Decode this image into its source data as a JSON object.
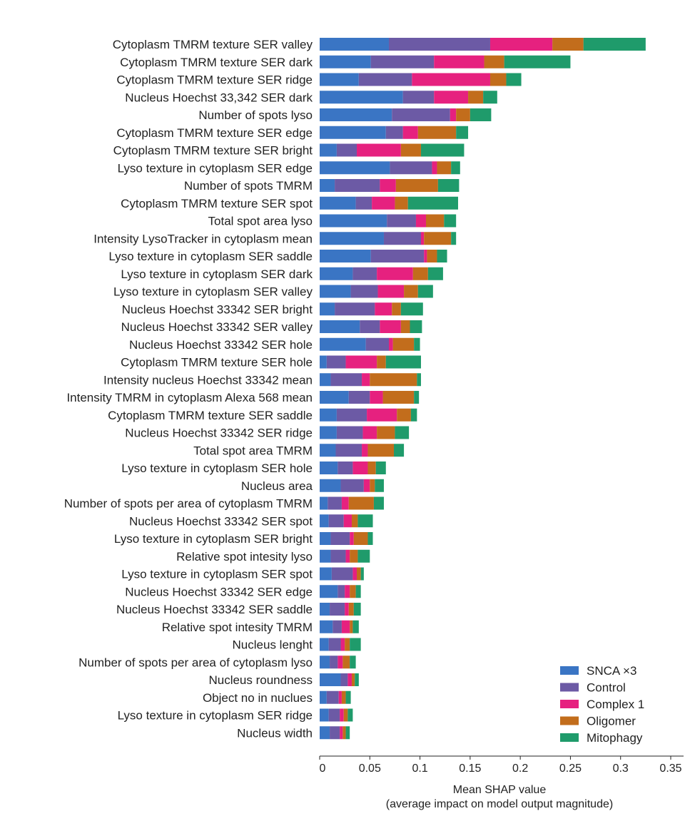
{
  "chart_data": {
    "type": "bar",
    "orientation": "horizontal",
    "stacked": true,
    "title": "",
    "xlabel": "Mean SHAP value",
    "xlabel_sub": "(average impact on model output magnitude)",
    "ylabel": "",
    "xlim": [
      0,
      0.35
    ],
    "xticks": [
      0,
      0.05,
      0.1,
      0.15,
      0.2,
      0.25,
      0.3,
      0.35
    ],
    "xtick_labels": [
      "0",
      "0.05",
      "0.1",
      "0.15",
      "0.2",
      "0.25",
      "0.3",
      "0.35"
    ],
    "grid": false,
    "legend_position": "bottom-right",
    "categories": [
      "Cytoplasm TMRM texture SER valley",
      "Cytoplasm TMRM texture SER dark",
      "Cytoplasm TMRM texture SER ridge",
      "Nucleus Hoechst 33,342 SER dark",
      "Number of spots lyso",
      "Cytoplasm TMRM texture SER edge",
      "Cytoplasm TMRM texture SER bright",
      "Lyso texture in cytoplasm SER edge",
      "Number of spots TMRM",
      "Cytoplasm TMRM texture SER spot",
      "Total spot area lyso",
      "Intensity LysoTracker in cytoplasm mean",
      "Lyso texture in cytoplasm SER saddle",
      "Lyso texture in cytoplasm SER dark",
      "Lyso texture in cytoplasm SER valley",
      "Nucleus Hoechst 33342 SER bright",
      "Nucleus Hoechst 33342 SER valley",
      "Nucleus Hoechst 33342 SER hole",
      "Cytoplasm TMRM texture SER hole",
      "Intensity nucleus Hoechst 33342 mean",
      "Intensity TMRM in cytoplasm Alexa 568 mean",
      "Cytoplasm TMRM texture SER saddle",
      "Nucleus Hoechst 33342 SER ridge",
      "Total spot area TMRM",
      "Lyso texture in cytoplasm SER hole",
      "Nucleus area",
      "Number of spots per area of cytoplasm TMRM",
      "Nucleus Hoechst 33342 SER spot",
      "Lyso texture in cytoplasm SER bright",
      "Relative spot intesity lyso",
      "Lyso texture in cytoplasm SER spot",
      "Nucleus Hoechst 33342 SER edge",
      "Nucleus Hoechst 33342 SER saddle",
      "Relative spot intesity TMRM",
      "Nucleus lenght",
      "Number of spots per area of cytoplasm lyso",
      "Nucleus roundness",
      "Object no in nuclues",
      "Lyso texture in cytoplasm SER ridge",
      "Nucleus width"
    ],
    "series": [
      {
        "name": "SNCA ×3",
        "color": "#3a75c4",
        "values": [
          0.069,
          0.051,
          0.039,
          0.083,
          0.072,
          0.066,
          0.017,
          0.07,
          0.015,
          0.036,
          0.067,
          0.064,
          0.051,
          0.033,
          0.031,
          0.015,
          0.04,
          0.046,
          0.007,
          0.011,
          0.029,
          0.017,
          0.017,
          0.016,
          0.018,
          0.021,
          0.008,
          0.009,
          0.011,
          0.011,
          0.012,
          0.018,
          0.01,
          0.013,
          0.009,
          0.01,
          0.021,
          0.007,
          0.009,
          0.01
        ]
      },
      {
        "name": "Control",
        "color": "#6c5aa5",
        "values": [
          0.101,
          0.063,
          0.053,
          0.031,
          0.058,
          0.017,
          0.02,
          0.042,
          0.045,
          0.016,
          0.029,
          0.037,
          0.053,
          0.024,
          0.027,
          0.04,
          0.02,
          0.023,
          0.019,
          0.031,
          0.021,
          0.03,
          0.026,
          0.026,
          0.015,
          0.023,
          0.014,
          0.015,
          0.019,
          0.015,
          0.021,
          0.007,
          0.015,
          0.009,
          0.012,
          0.008,
          0.007,
          0.012,
          0.011,
          0.01
        ]
      },
      {
        "name": "Complex 1",
        "color": "#e6217f",
        "values": [
          0.062,
          0.05,
          0.078,
          0.034,
          0.006,
          0.015,
          0.044,
          0.005,
          0.016,
          0.023,
          0.01,
          0.003,
          0.003,
          0.036,
          0.026,
          0.017,
          0.021,
          0.004,
          0.031,
          0.008,
          0.013,
          0.03,
          0.014,
          0.006,
          0.015,
          0.006,
          0.007,
          0.008,
          0.004,
          0.004,
          0.004,
          0.005,
          0.004,
          0.008,
          0.004,
          0.005,
          0.004,
          0.003,
          0.004,
          0.003
        ]
      },
      {
        "name": "Oligomer",
        "color": "#c26d1c",
        "values": [
          0.031,
          0.02,
          0.016,
          0.015,
          0.014,
          0.038,
          0.02,
          0.014,
          0.042,
          0.013,
          0.018,
          0.027,
          0.01,
          0.015,
          0.014,
          0.009,
          0.009,
          0.021,
          0.009,
          0.047,
          0.031,
          0.014,
          0.018,
          0.026,
          0.008,
          0.005,
          0.025,
          0.006,
          0.014,
          0.008,
          0.004,
          0.006,
          0.005,
          0.003,
          0.005,
          0.007,
          0.003,
          0.004,
          0.004,
          0.003
        ]
      },
      {
        "name": "Mitophagy",
        "color": "#1f9b6b",
        "values": [
          0.062,
          0.066,
          0.015,
          0.014,
          0.021,
          0.012,
          0.043,
          0.009,
          0.021,
          0.05,
          0.012,
          0.005,
          0.01,
          0.015,
          0.015,
          0.022,
          0.012,
          0.006,
          0.035,
          0.004,
          0.005,
          0.006,
          0.014,
          0.01,
          0.01,
          0.009,
          0.01,
          0.015,
          0.005,
          0.012,
          0.003,
          0.005,
          0.007,
          0.006,
          0.011,
          0.006,
          0.004,
          0.005,
          0.005,
          0.004
        ]
      }
    ]
  }
}
